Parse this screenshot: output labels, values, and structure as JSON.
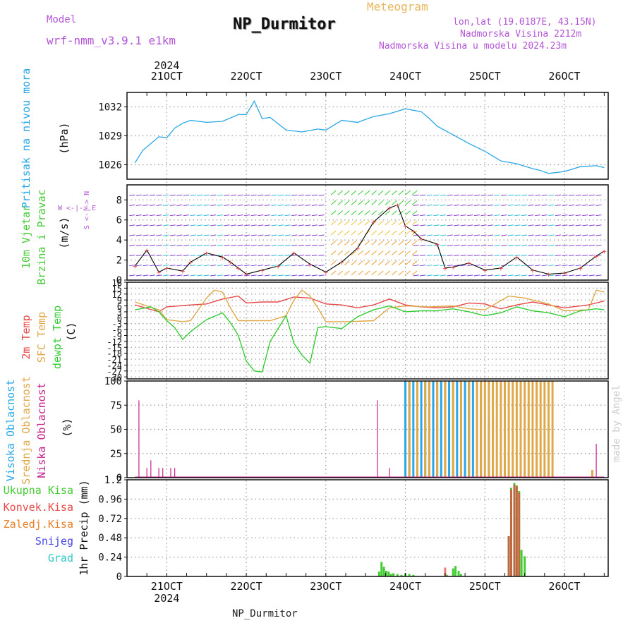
{
  "header": {
    "model_label": "Model",
    "model_name": "wrf-nmm_v3.9.1 e1km",
    "title": "NP_Durmitor",
    "meteogram": "Meteogram",
    "lonlat": "lon,lat (19.0187E, 43.15N)",
    "altitude": "Nadmorska Visina 2212m",
    "altitude_model": "Nadmorska Visina u modelu 2024.23m",
    "top_year": "2024",
    "bottom_year": "2024",
    "footer": "NP_Durmitor",
    "watermark": "made by Angel"
  },
  "colors": {
    "pressure": "#2aa7e6",
    "wind_speed": "#000000",
    "temp2m": "#e84848",
    "sfc": "#e0a848",
    "dewpt": "#33cc33",
    "high_cloud": "#2aa7e6",
    "mid_cloud": "#e0a848",
    "low_cloud": "#c8208c",
    "total_precip": "#44cc33",
    "conv_precip": "#e84848",
    "frozen_precip": "#e87f28",
    "snow": "#4848e8",
    "graupel": "#30c8c8",
    "grid": "#999999"
  },
  "chart_data": [
    {
      "type": "line",
      "name": "pressure",
      "panel_labels": [
        "Pritisak na nivou mora",
        "(hPa)"
      ],
      "x_days": [
        "21OCT",
        "22OCT",
        "23OCT",
        "24OCT",
        "25OCT",
        "26OCT"
      ],
      "x": [
        20.6,
        20.7,
        20.9,
        21.0,
        21.1,
        21.2,
        21.3,
        21.5,
        21.7,
        21.9,
        22.0,
        22.1,
        22.2,
        22.3,
        22.5,
        22.7,
        22.9,
        23.0,
        23.2,
        23.4,
        23.6,
        23.8,
        24.0,
        24.2,
        24.3,
        24.4,
        24.6,
        24.8,
        25.0,
        25.2,
        25.4,
        25.6,
        25.7,
        25.8,
        26.0,
        26.2,
        26.4,
        26.5
      ],
      "y": [
        1026.2,
        1027.5,
        1028.9,
        1028.8,
        1029.8,
        1030.3,
        1030.6,
        1030.4,
        1030.5,
        1031.2,
        1031.2,
        1032.6,
        1030.8,
        1030.9,
        1029.6,
        1029.4,
        1029.7,
        1029.6,
        1030.6,
        1030.4,
        1031.0,
        1031.3,
        1031.8,
        1031.5,
        1030.8,
        1030.0,
        1029.1,
        1028.2,
        1027.4,
        1026.4,
        1026.1,
        1025.6,
        1025.4,
        1025.1,
        1025.3,
        1025.8,
        1025.9,
        1025.7
      ],
      "ylim": [
        1024.5,
        1033.5
      ],
      "yticks": [
        1026,
        1029,
        1032
      ]
    },
    {
      "type": "line",
      "name": "wind",
      "panel_labels": [
        "10m Vjetar",
        "Brzina i Pravac",
        "(m/s)"
      ],
      "direction_legend": "W <-|-> E",
      "direction_legend_vertical": "S <-|-> N",
      "x": [
        20.6,
        20.75,
        20.9,
        21.0,
        21.2,
        21.3,
        21.5,
        21.7,
        21.8,
        21.9,
        22.0,
        22.2,
        22.4,
        22.6,
        22.8,
        23.0,
        23.2,
        23.4,
        23.6,
        23.8,
        23.9,
        24.0,
        24.1,
        24.2,
        24.4,
        24.5,
        24.6,
        24.8,
        25.0,
        25.2,
        25.4,
        25.6,
        25.8,
        26.0,
        26.2,
        26.4,
        26.5
      ],
      "y": [
        1.4,
        3.0,
        0.8,
        1.2,
        0.9,
        1.8,
        2.7,
        2.3,
        1.8,
        1.2,
        0.6,
        1.0,
        1.4,
        2.7,
        1.6,
        0.8,
        1.8,
        3.2,
        5.8,
        7.2,
        7.5,
        5.4,
        4.9,
        4.1,
        3.6,
        1.2,
        1.3,
        1.7,
        1.0,
        1.2,
        2.3,
        1.0,
        0.6,
        0.7,
        1.2,
        2.4,
        2.9
      ],
      "ylim": [
        0,
        9.5
      ],
      "yticks": [
        0,
        2,
        4,
        6,
        8
      ]
    },
    {
      "type": "line",
      "name": "temperature",
      "panel_labels": [
        "2m Temp",
        "SFC Temp",
        "dewpt Temp",
        "(C)"
      ],
      "series": [
        {
          "name": "2m Temp",
          "x": [
            20.6,
            20.9,
            21.0,
            21.3,
            21.5,
            21.7,
            21.9,
            22.0,
            22.2,
            22.4,
            22.6,
            22.8,
            23.0,
            23.2,
            23.4,
            23.6,
            23.8,
            24.0,
            24.2,
            24.4,
            24.6,
            24.8,
            25.0,
            25.2,
            25.4,
            25.6,
            25.8,
            26.0,
            26.3,
            26.5
          ],
          "y": [
            6.5,
            3.0,
            5.5,
            6.5,
            7.0,
            9.5,
            11.0,
            7.5,
            8.0,
            8.0,
            10.5,
            10.0,
            7.0,
            6.5,
            5.0,
            6.5,
            9.5,
            6.5,
            5.5,
            5.0,
            5.5,
            7.5,
            7.0,
            4.5,
            6.5,
            8.0,
            6.5,
            5.0,
            6.5,
            8.5
          ]
        },
        {
          "name": "SFC Temp",
          "x": [
            20.6,
            20.9,
            21.0,
            21.2,
            21.3,
            21.5,
            21.6,
            21.7,
            21.8,
            21.9,
            22.0,
            22.3,
            22.5,
            22.6,
            22.7,
            22.8,
            22.9,
            23.0,
            23.3,
            23.6,
            23.8,
            24.0,
            24.3,
            24.6,
            24.8,
            25.0,
            25.3,
            25.5,
            25.8,
            26.0,
            26.3,
            26.4,
            26.5
          ],
          "y": [
            8.0,
            4.0,
            -1.0,
            -2.0,
            -1.5,
            10.0,
            14.0,
            13.0,
            5.0,
            -1.5,
            -1.5,
            -1.5,
            1.0,
            9.0,
            14.0,
            11.0,
            5.0,
            -2.0,
            -2.0,
            -1.5,
            5.0,
            6.0,
            5.5,
            6.0,
            4.5,
            4.0,
            11.0,
            10.0,
            7.0,
            3.5,
            4.0,
            14.0,
            13.0
          ]
        },
        {
          "name": "dewpt Temp",
          "x": [
            20.6,
            20.8,
            20.9,
            21.0,
            21.1,
            21.2,
            21.3,
            21.5,
            21.7,
            21.8,
            21.9,
            22.0,
            22.1,
            22.2,
            22.3,
            22.5,
            22.6,
            22.7,
            22.8,
            22.9,
            23.0,
            23.2,
            23.4,
            23.6,
            23.8,
            24.0,
            24.2,
            24.4,
            24.6,
            24.8,
            25.0,
            25.2,
            25.4,
            25.6,
            25.8,
            26.0,
            26.2,
            26.4,
            26.5
          ],
          "y": [
            4.0,
            5.5,
            3.0,
            -1.5,
            -5.0,
            -11.0,
            -7.0,
            -1.0,
            2.5,
            -2.5,
            -9.0,
            -22.0,
            -27.0,
            -27.5,
            -12.0,
            1.0,
            -13.0,
            -19.0,
            -23.0,
            -5.0,
            -4.5,
            -5.5,
            0.5,
            4.0,
            6.0,
            3.0,
            3.5,
            3.5,
            4.5,
            3.0,
            1.0,
            2.5,
            5.5,
            3.5,
            2.5,
            0.5,
            3.5,
            4.5,
            4.0
          ]
        }
      ],
      "ylim": [
        -31,
        18
      ],
      "yticks": [
        -30,
        -27,
        -24,
        -21,
        -18,
        -15,
        -12,
        -9,
        -6,
        -3,
        0,
        3,
        6,
        9,
        12,
        15,
        18
      ]
    },
    {
      "type": "bar",
      "name": "clouds",
      "panel_labels": [
        "Visoka Oblacnost",
        "Srednja Oblacnost",
        "Niska Oblacnost",
        "(%)"
      ],
      "ylim": [
        0,
        100
      ],
      "yticks": [
        0,
        25,
        50,
        75,
        100
      ],
      "series": [
        {
          "name": "Niska Oblacnost",
          "x": [
            20.65,
            20.75,
            20.8,
            20.9,
            20.95,
            21.05,
            21.1,
            23.65,
            23.8,
            24.1,
            24.5,
            24.6,
            25.2,
            25.3,
            25.4,
            26.4
          ],
          "y": [
            80,
            10,
            18,
            10,
            10,
            10,
            10,
            80,
            10,
            5,
            50,
            80,
            95,
            85,
            85,
            35
          ]
        },
        {
          "name": "Visoka Oblacnost",
          "x": [
            24.0,
            24.05,
            24.1,
            24.15,
            24.2,
            24.25,
            24.3,
            24.35,
            24.4,
            24.45,
            24.5,
            24.55,
            24.6,
            24.65,
            24.7,
            24.75,
            24.8,
            24.85,
            24.9,
            24.95,
            25.05,
            25.1
          ],
          "y": [
            100,
            100,
            100,
            100,
            100,
            100,
            100,
            100,
            100,
            100,
            100,
            100,
            100,
            100,
            100,
            100,
            100,
            100,
            100,
            100,
            60,
            60
          ]
        },
        {
          "name": "Srednja Oblacnost",
          "x": [
            24.05,
            24.15,
            24.25,
            24.3,
            24.4,
            24.5,
            24.6,
            24.7,
            24.8,
            24.9,
            24.95,
            25.0,
            25.05,
            25.1,
            25.15,
            25.2,
            25.25,
            25.3,
            25.35,
            25.4,
            25.45,
            25.5,
            25.55,
            25.6,
            25.65,
            25.7,
            25.75,
            25.8,
            25.85,
            26.35
          ],
          "y": [
            100,
            100,
            100,
            100,
            100,
            100,
            100,
            100,
            100,
            100,
            100,
            100,
            100,
            100,
            100,
            100,
            100,
            100,
            100,
            100,
            100,
            100,
            100,
            100,
            100,
            100,
            100,
            100,
            100,
            8
          ]
        }
      ]
    },
    {
      "type": "bar",
      "name": "precipitation",
      "panel_labels": [
        "Ukupna Kisa",
        "Konvek.Kisa",
        "Zaledj.Kisa",
        "Snijeg",
        "Grad",
        "1hr Precip (mm)"
      ],
      "ylim": [
        0,
        1.2
      ],
      "yticks": [
        0,
        0.24,
        0.48,
        0.72,
        0.96,
        1.2
      ],
      "series": [
        {
          "name": "Ukupna Kisa",
          "x": [
            23.67,
            23.7,
            23.73,
            23.76,
            23.79,
            23.82,
            23.85,
            23.9,
            23.95,
            24.0,
            24.05,
            24.1,
            24.52,
            24.6,
            24.63,
            24.67,
            24.7,
            25.3,
            25.33,
            25.37,
            25.4,
            25.43,
            25.46,
            25.5,
            25.53
          ],
          "y": [
            0.06,
            0.18,
            0.12,
            0.07,
            0.06,
            0.03,
            0.04,
            0.03,
            0.02,
            0.04,
            0.03,
            0.02,
            0.02,
            0.1,
            0.13,
            0.07,
            0.03,
            0.5,
            1.1,
            1.16,
            1.13,
            1.06,
            0.33,
            0.25,
            0.0
          ]
        },
        {
          "name": "Konvek.Kisa",
          "x": [
            24.5,
            25.3,
            25.33,
            25.37,
            25.4,
            25.43
          ],
          "y": [
            0.11,
            0.5,
            1.08,
            1.14,
            1.12,
            1.04
          ]
        },
        {
          "name": "Zaledj.Kisa",
          "x": [],
          "y": []
        },
        {
          "name": "Snijeg",
          "x": [],
          "y": []
        },
        {
          "name": "Grad",
          "x": [],
          "y": []
        }
      ]
    }
  ]
}
